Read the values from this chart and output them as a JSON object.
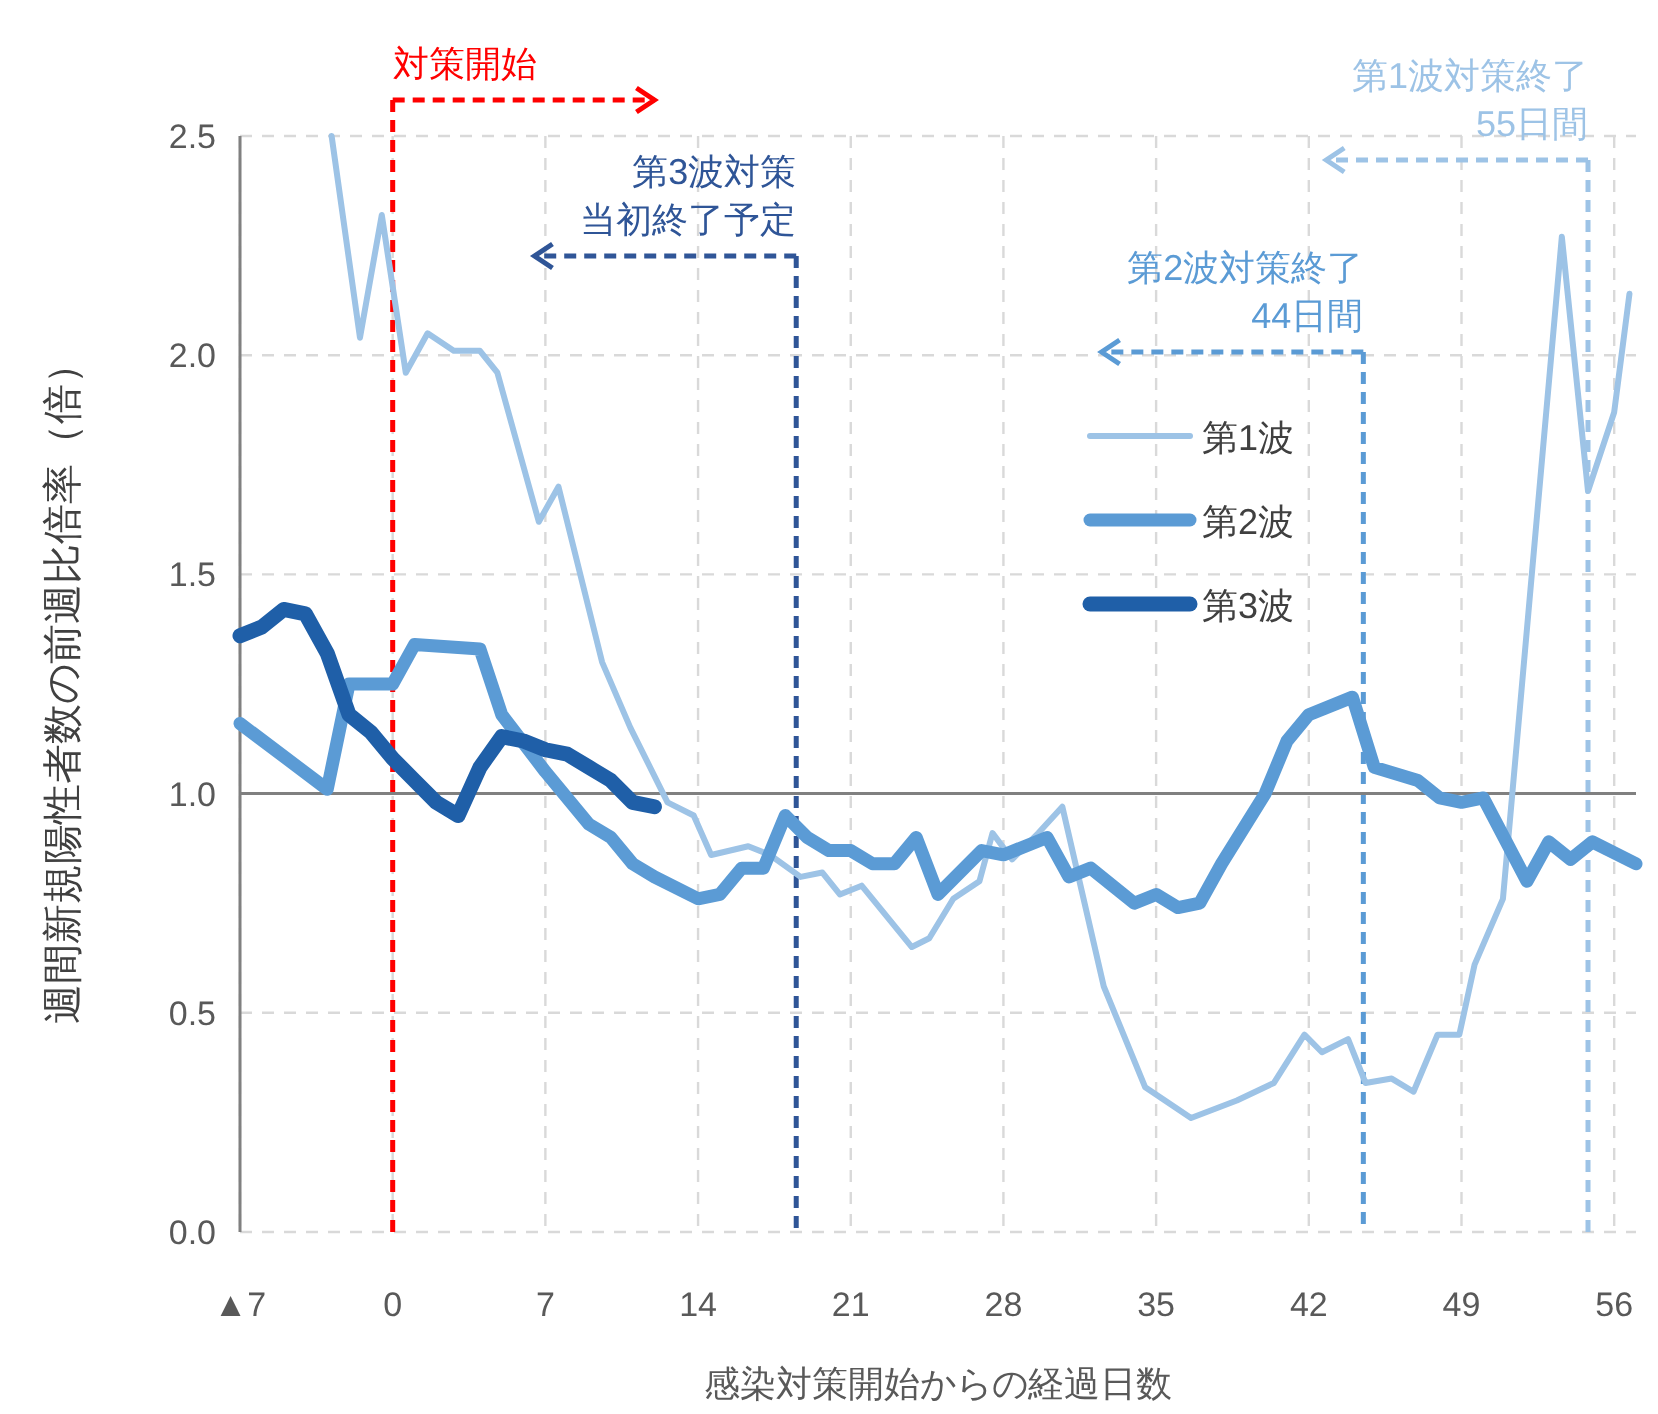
{
  "chart_data": {
    "type": "line",
    "xlabel": "感染対策開始からの経過日数",
    "ylabel": "週間新規陽性者数の前週比倍率（倍）",
    "xlim": [
      -7,
      57
    ],
    "ylim": [
      0,
      2.5
    ],
    "xticks": [
      {
        "value": -7,
        "label": "▲7"
      },
      0,
      7,
      14,
      21,
      28,
      35,
      42,
      49,
      56
    ],
    "yticks": [
      {
        "value": 0,
        "label": "0.0"
      },
      0.5,
      {
        "value": 1,
        "label": "1.0"
      },
      1.5,
      {
        "value": 2,
        "label": "2.0"
      },
      2.5
    ],
    "grid": true,
    "legend": "top right",
    "line_style": "solid",
    "marker": "none",
    "series": [
      {
        "name": "第1波",
        "color": "#9dc3e6",
        "x": [
          -2.8,
          -1.5,
          -0.5,
          0.6,
          1.6,
          2.8,
          4,
          4.8,
          6.7,
          7.6,
          9.6,
          10.9,
          12.6,
          13.8,
          14.6,
          16.3,
          17.3,
          18.7,
          19.7,
          20.5,
          21.5,
          23.8,
          24.6,
          25.7,
          26.9,
          27.5,
          28.4,
          29.6,
          30.7,
          32.6,
          34.5,
          36.6,
          38.7,
          40.4,
          41.8,
          42.6,
          43.8,
          44.6,
          45.8,
          46.8,
          47.9,
          48.9,
          49.6,
          50.9,
          53.6,
          54.8,
          56,
          56.7
        ],
        "values": [
          2.5,
          2.04,
          2.32,
          1.96,
          2.05,
          2.01,
          2.01,
          1.96,
          1.62,
          1.7,
          1.3,
          1.15,
          0.98,
          0.95,
          0.86,
          0.88,
          0.86,
          0.81,
          0.82,
          0.77,
          0.79,
          0.65,
          0.67,
          0.76,
          0.8,
          0.91,
          0.85,
          0.91,
          0.97,
          0.56,
          0.33,
          0.26,
          0.3,
          0.34,
          0.45,
          0.41,
          0.44,
          0.34,
          0.35,
          0.32,
          0.45,
          0.45,
          0.61,
          0.76,
          2.27,
          1.69,
          1.87,
          2.14
        ]
      },
      {
        "name": "第2波",
        "color": "#5b9bd5",
        "x": [
          -7,
          -3,
          -2,
          0,
          1,
          4,
          5,
          7,
          9,
          10,
          11,
          12,
          14,
          15,
          16,
          17,
          18,
          19,
          20,
          21,
          22,
          23,
          24,
          25,
          27,
          28,
          30,
          31,
          32,
          34,
          35,
          36,
          37,
          38,
          40,
          41,
          42,
          44,
          45,
          47,
          48,
          49,
          50,
          52,
          53,
          54,
          55,
          57
        ],
        "values": [
          1.16,
          1.01,
          1.25,
          1.25,
          1.34,
          1.33,
          1.18,
          1.05,
          0.93,
          0.9,
          0.84,
          0.81,
          0.76,
          0.77,
          0.83,
          0.83,
          0.95,
          0.9,
          0.87,
          0.87,
          0.84,
          0.84,
          0.9,
          0.77,
          0.87,
          0.86,
          0.9,
          0.81,
          0.83,
          0.75,
          0.77,
          0.74,
          0.75,
          0.84,
          1.0,
          1.12,
          1.18,
          1.22,
          1.06,
          1.03,
          0.99,
          0.98,
          0.99,
          0.8,
          0.89,
          0.85,
          0.89,
          0.84
        ]
      },
      {
        "name": "第3波",
        "color": "#1f5fa8",
        "x": [
          -7,
          -6,
          -5,
          -4,
          -3,
          -2,
          -1,
          0,
          1,
          2,
          3,
          4,
          5,
          6,
          7,
          8,
          9,
          10,
          11,
          12
        ],
        "values": [
          1.36,
          1.38,
          1.42,
          1.41,
          1.32,
          1.18,
          1.14,
          1.08,
          1.03,
          0.98,
          0.95,
          1.06,
          1.13,
          1.12,
          1.1,
          1.09,
          1.06,
          1.03,
          0.98,
          0.97
        ]
      }
    ],
    "ref_lines": [
      {
        "axis": "x",
        "value": 0,
        "label": "対策開始",
        "color": "#ff0000",
        "line_style": "dashed"
      },
      {
        "axis": "x",
        "value": 18.5,
        "label": "第3波対策当初終了予定",
        "color": "#2f5597",
        "line_style": "dashed"
      },
      {
        "axis": "x",
        "value": 44.5,
        "label": "第2波対策終了44日間",
        "color": "#5b9bd5",
        "line_style": "dashed"
      },
      {
        "axis": "x",
        "value": 54.8,
        "label": "第1波対策終了55日間",
        "color": "#9dc3e6",
        "line_style": "dashed"
      },
      {
        "axis": "y",
        "value": 1,
        "color": "#808080",
        "line_style": "solid"
      }
    ]
  }
}
